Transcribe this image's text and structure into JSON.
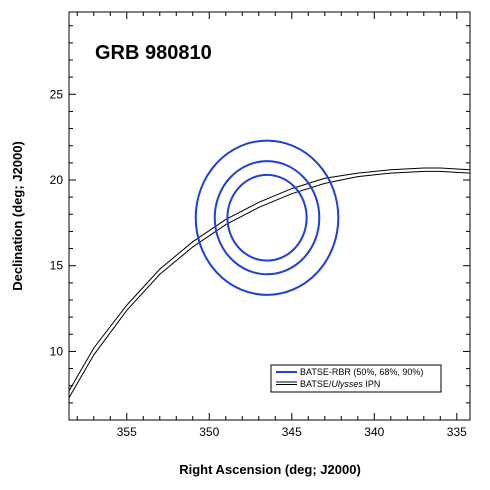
{
  "chart_data": {
    "type": "line",
    "title": "GRB 980810",
    "xlabel": "Right Ascension (deg; J2000)",
    "ylabel": "Declination (deg; J2000)",
    "xlim": [
      358.5,
      334.2
    ],
    "ylim": [
      6,
      29.8
    ],
    "x_ticks": [
      355,
      350,
      345,
      340,
      335
    ],
    "y_ticks": [
      10,
      15,
      20,
      25
    ],
    "grid": false,
    "legend_position": "bottom-right",
    "legend": [
      {
        "label": "BATSE-RBR (50%, 68%, 90%)",
        "color": "#1f3fd6",
        "style": "thick"
      },
      {
        "label_prefix": "BATSE/",
        "label_italic": "Ulysses",
        "label_suffix": " IPN",
        "color": "#000000",
        "style": "double"
      }
    ],
    "circles": {
      "center": [
        346.5,
        17.8
      ],
      "radii_deg": [
        2.5,
        3.3,
        4.5
      ],
      "color": "#1f3fd6",
      "confidence_levels": [
        "50%",
        "68%",
        "90%"
      ]
    },
    "annulus": {
      "color": "#000000",
      "lines": [
        {
          "x": [
            358.5,
            357.0,
            355.0,
            353.0,
            351.0,
            349.0,
            347.0,
            345.0,
            343.0,
            341.0,
            339.0,
            337.0,
            336.0,
            334.2
          ],
          "y": [
            7.3,
            9.8,
            12.4,
            14.5,
            16.1,
            17.4,
            18.4,
            19.2,
            19.8,
            20.2,
            20.4,
            20.5,
            20.5,
            20.4
          ]
        },
        {
          "x": [
            358.5,
            357.0,
            355.0,
            353.0,
            351.0,
            349.0,
            347.0,
            345.0,
            343.0,
            341.0,
            339.0,
            337.0,
            336.0,
            334.2
          ],
          "y": [
            7.7,
            10.2,
            12.7,
            14.8,
            16.4,
            17.7,
            18.7,
            19.5,
            20.1,
            20.4,
            20.6,
            20.7,
            20.7,
            20.6
          ]
        }
      ]
    }
  }
}
